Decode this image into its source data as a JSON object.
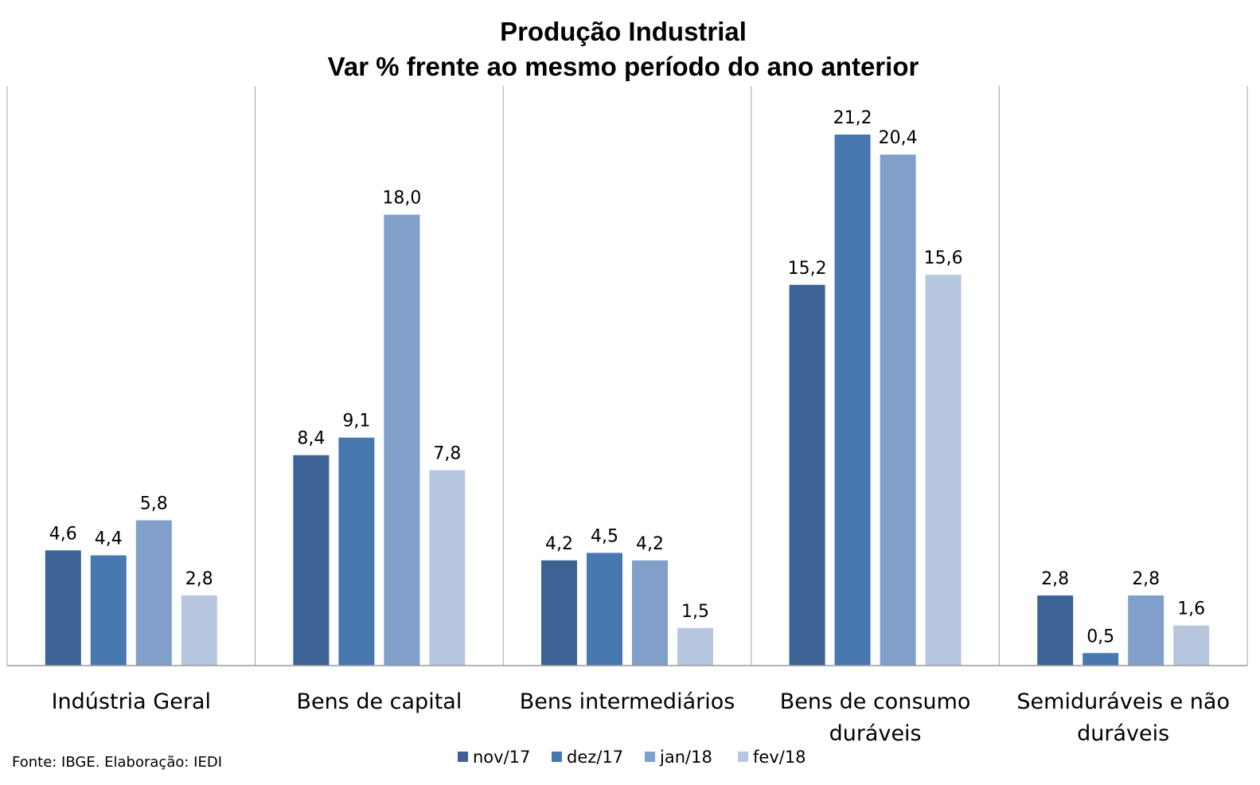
{
  "chart_data": {
    "type": "bar",
    "title": "Produção Industrial",
    "subtitle": "Var % frente ao mesmo período do ano anterior",
    "categories": [
      [
        "Indústria Geral"
      ],
      [
        "Bens de capital"
      ],
      [
        "Bens intermediários"
      ],
      [
        "Bens de consumo",
        "duráveis"
      ],
      [
        "Semiduráveis e não",
        "duráveis"
      ]
    ],
    "series": [
      {
        "name": "nov/17",
        "color": "#3C6393",
        "values": [
          4.6,
          8.4,
          4.2,
          15.2,
          2.8
        ],
        "labels": [
          "4,6",
          "8,4",
          "4,2",
          "15,2",
          "2,8"
        ]
      },
      {
        "name": "dez/17",
        "color": "#4878B0",
        "values": [
          4.4,
          9.1,
          4.5,
          21.2,
          0.5
        ],
        "labels": [
          "4,4",
          "9,1",
          "4,5",
          "21,2",
          "0,5"
        ]
      },
      {
        "name": "jan/18",
        "color": "#809FC9",
        "values": [
          5.8,
          18.0,
          4.2,
          20.4,
          2.8
        ],
        "labels": [
          "5,8",
          "18,0",
          "4,2",
          "20,4",
          "2,8"
        ]
      },
      {
        "name": "fev/18",
        "color": "#B7C6DF",
        "values": [
          2.8,
          7.8,
          1.5,
          15.6,
          1.6
        ],
        "labels": [
          "2,8",
          "7,8",
          "1,5",
          "15,6",
          "1,6"
        ]
      }
    ],
    "ylim": [
      0,
      22.5
    ],
    "grid": false,
    "legend": "bottom-center",
    "source": "Fonte: IBGE. Elaboração: IEDI"
  }
}
